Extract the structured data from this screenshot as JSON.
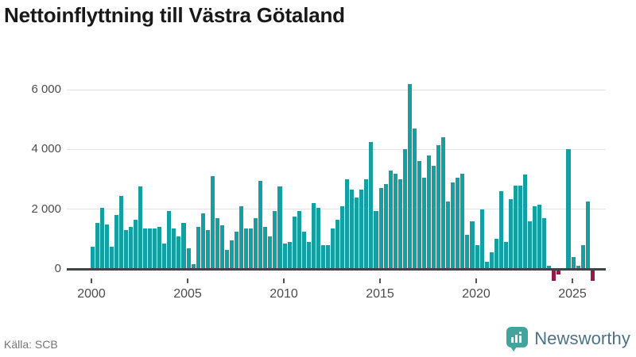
{
  "header": {
    "title": "Nettoinflyttning till Västra Götaland"
  },
  "footer": {
    "source": "Källa: SCB",
    "brand": "Newsworthy"
  },
  "colors": {
    "bar_positive": "#14a0a0",
    "bar_negative": "#941a4e",
    "axis": "#3d4545",
    "gridline": "#e3e3e3",
    "title_text": "#191919",
    "tick_label": "#4c4c4c",
    "source_text": "#74747c",
    "brand_text": "#4d7284",
    "brand_icon": "#43a39d",
    "background": "#ffffff"
  },
  "chart_data": {
    "type": "bar",
    "title": "Nettoinflyttning till Västra Götaland",
    "xlabel": "",
    "ylabel": "",
    "frequency": "quarterly",
    "start": "2000 Q1",
    "end": "2026 Q1",
    "grid": "horizontal",
    "legend": "none",
    "ylim": [
      -600,
      6600
    ],
    "y_ticks": [
      0,
      2000,
      4000,
      6000
    ],
    "y_tick_labels": [
      "0",
      "2 000",
      "4 000",
      "6 000"
    ],
    "x_tick_years": [
      2000,
      2005,
      2010,
      2015,
      2020,
      2025
    ],
    "x_tick_labels": [
      "2000",
      "2005",
      "2010",
      "2015",
      "2020",
      "2025"
    ],
    "values": [
      750,
      1550,
      2050,
      1500,
      750,
      1800,
      2450,
      1300,
      1400,
      1650,
      2750,
      1350,
      1350,
      1350,
      1400,
      850,
      1950,
      1350,
      1100,
      1550,
      700,
      150,
      1400,
      1850,
      1300,
      3100,
      1700,
      1450,
      650,
      950,
      1250,
      2100,
      1350,
      1350,
      1700,
      2950,
      1400,
      1100,
      1950,
      2750,
      850,
      900,
      1750,
      1950,
      1250,
      900,
      2200,
      2050,
      800,
      800,
      1350,
      1650,
      2100,
      3000,
      2650,
      2400,
      2650,
      3000,
      4250,
      1950,
      2700,
      2850,
      3300,
      3200,
      3000,
      4000,
      6200,
      4700,
      3600,
      3050,
      3800,
      3450,
      4150,
      4400,
      2250,
      2900,
      3050,
      3200,
      1150,
      1600,
      800,
      2000,
      250,
      550,
      1000,
      2600,
      900,
      2350,
      2800,
      2800,
      3150,
      1600,
      2100,
      2150,
      1700,
      100,
      -350,
      -150,
      0,
      4000,
      400,
      100,
      800,
      2250,
      -350
    ]
  }
}
